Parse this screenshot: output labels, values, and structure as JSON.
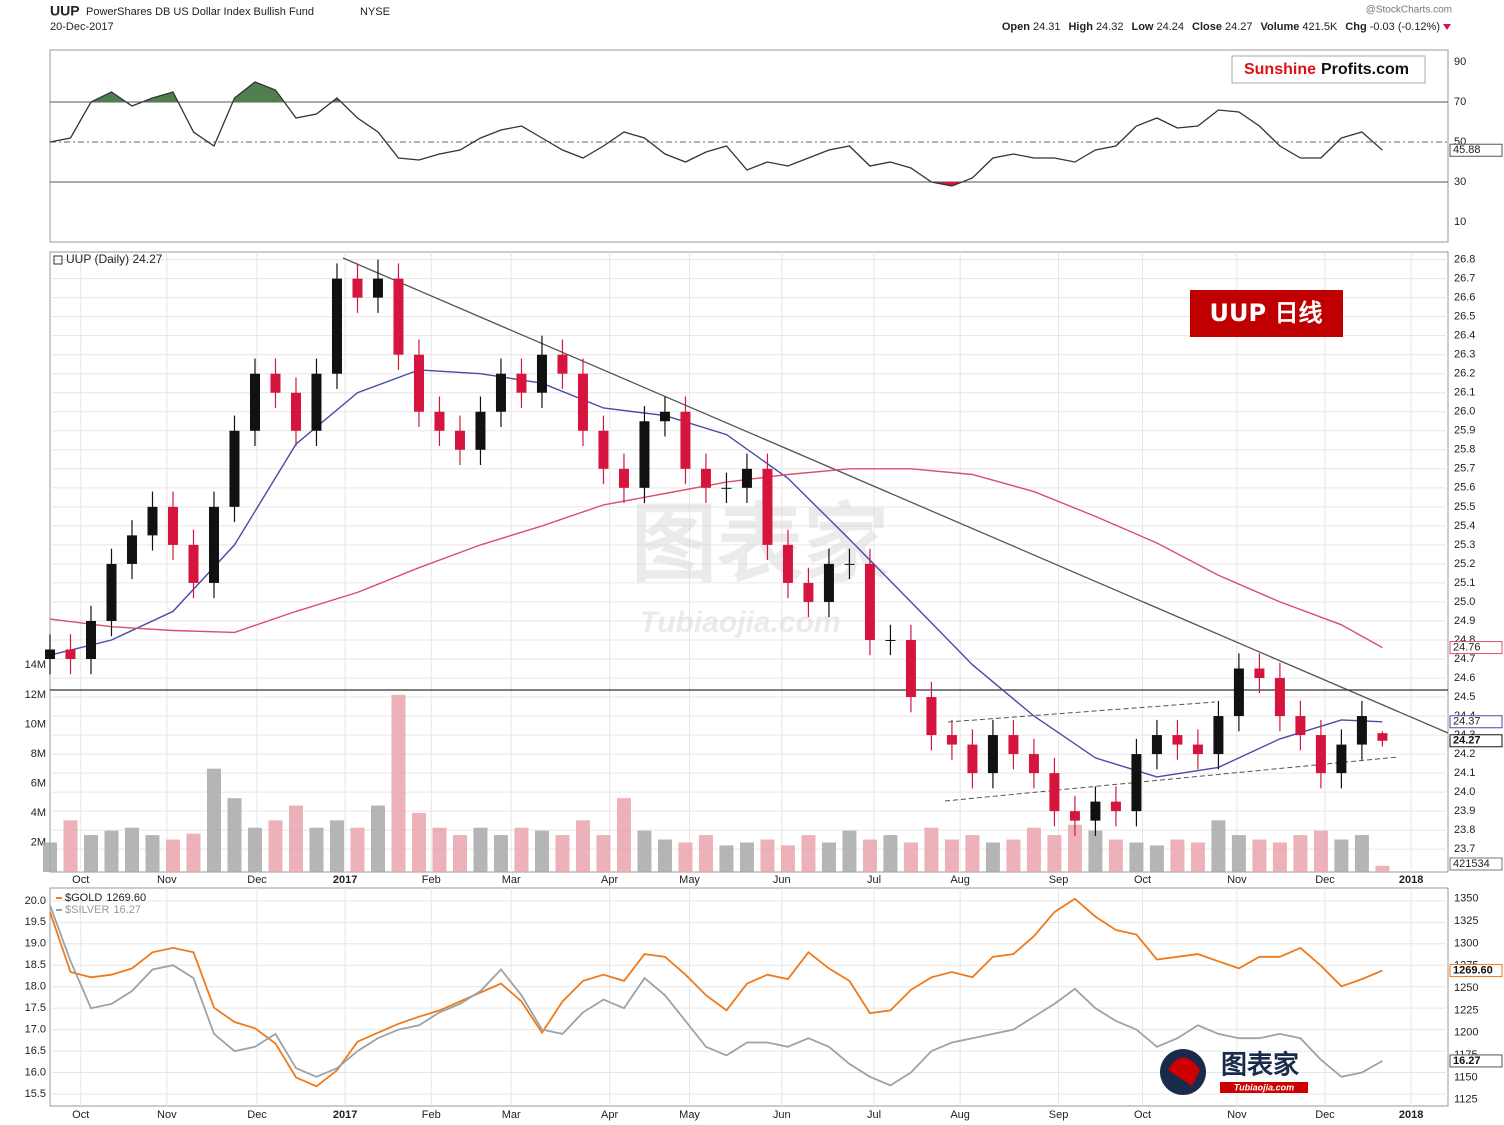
{
  "header": {
    "symbol": "UUP",
    "name": "PowerShares DB US Dollar Index Bullish Fund",
    "exchange": "NYSE",
    "source": "@StockCharts.com",
    "date": "20-Dec-2017",
    "stats": [
      {
        "label": "Open",
        "value": "24.31"
      },
      {
        "label": "High",
        "value": "24.32"
      },
      {
        "label": "Low",
        "value": "24.24"
      },
      {
        "label": "Close",
        "value": "24.27"
      },
      {
        "label": "Volume",
        "value": "421.5K"
      },
      {
        "label": "Chg",
        "value": "-0.03 (-0.12%)"
      }
    ],
    "brand": {
      "red": "Sunshine",
      "black": "Profits.com"
    },
    "badge": "UUP  日线",
    "watermark": {
      "text": "图表家",
      "subtext": "Tubiaojia.com"
    },
    "logo": {
      "text": "图表家",
      "subtext": "Tubiaojia.com"
    }
  },
  "chart_data": [
    {
      "type": "line",
      "xlim": [
        0,
        68.2
      ],
      "ylim": [
        0,
        96
      ],
      "yticks": [
        10,
        30,
        50,
        70,
        90
      ],
      "overbought_color": "#4f7f4f",
      "oversold_color": "#d6153f",
      "x": [
        0,
        1,
        2,
        3,
        4,
        5,
        6,
        7,
        8,
        9,
        10,
        11,
        12,
        13,
        14,
        15,
        16,
        17,
        18,
        19,
        20,
        21,
        22,
        23,
        24,
        25,
        26,
        27,
        28,
        29,
        30,
        31,
        32,
        33,
        34,
        35,
        36,
        37,
        38,
        39,
        40,
        41,
        42,
        43,
        44,
        45,
        46,
        47,
        48,
        49,
        50,
        51,
        52,
        53,
        54,
        55,
        56,
        57,
        58,
        59,
        60,
        61,
        62,
        63,
        64,
        65
      ],
      "series": [
        {
          "color": "#333333",
          "values": [
            50,
            52,
            70,
            75,
            68,
            72,
            75,
            55,
            48,
            72,
            80,
            76,
            62,
            64,
            72,
            62,
            55,
            42,
            41,
            44,
            46,
            52,
            56,
            58,
            52,
            46,
            42,
            48,
            55,
            52,
            44,
            40,
            45,
            48,
            36,
            40,
            38,
            42,
            46,
            48,
            38,
            40,
            37,
            30,
            28,
            32,
            42,
            44,
            42,
            42,
            40,
            46,
            48,
            58,
            62,
            57,
            58,
            66,
            65,
            58,
            48,
            42,
            42,
            52,
            55,
            45.88
          ]
        }
      ]
    },
    {
      "type": "candlestick",
      "title": "UUP (Daily) 24.27",
      "xlim": [
        0,
        68.2
      ],
      "ylim": [
        23.58,
        26.84
      ],
      "grid": true,
      "up_color": "#111111",
      "down_color": "#d6153f",
      "yticks": [
        23.7,
        23.8,
        23.9,
        {
          "value": 24,
          "label": "24.0"
        },
        24.1,
        24.2,
        24.3,
        24.4,
        24.5,
        24.6,
        24.7,
        24.8,
        24.9,
        {
          "value": 25,
          "label": "25.0"
        },
        25.1,
        25.2,
        25.3,
        25.4,
        25.5,
        25.6,
        25.7,
        25.8,
        25.9,
        {
          "value": 26,
          "label": "26.0"
        },
        26.1,
        26.2,
        26.3,
        26.4,
        26.5,
        26.6,
        26.7,
        26.8
      ],
      "xticks": [
        {
          "value": 1.5,
          "label": "Oct"
        },
        {
          "value": 5.7,
          "label": "Nov"
        },
        {
          "value": 10.1,
          "label": "Dec"
        },
        {
          "value": 14.4,
          "label": "2017"
        },
        {
          "value": 18.6,
          "label": "Feb"
        },
        {
          "value": 22.5,
          "label": "Mar"
        },
        {
          "value": 27.3,
          "label": "Apr"
        },
        {
          "value": 31.2,
          "label": "May"
        },
        {
          "value": 35.7,
          "label": "Jun"
        },
        {
          "value": 40.2,
          "label": "Jul"
        },
        {
          "value": 44.4,
          "label": "Aug"
        },
        {
          "value": 49.2,
          "label": "Sep"
        },
        {
          "value": 53.3,
          "label": "Oct"
        },
        {
          "value": 57.9,
          "label": "Nov"
        },
        {
          "value": 62.2,
          "label": "Dec"
        },
        {
          "value": 66.4,
          "label": "2018"
        }
      ],
      "x": [
        0,
        1,
        2,
        3,
        4,
        5,
        6,
        7,
        8,
        9,
        10,
        11,
        12,
        13,
        14,
        15,
        16,
        17,
        18,
        19,
        20,
        21,
        22,
        23,
        24,
        25,
        26,
        27,
        28,
        29,
        30,
        31,
        32,
        33,
        34,
        35,
        36,
        37,
        38,
        39,
        40,
        41,
        42,
        43,
        44,
        45,
        46,
        47,
        48,
        49,
        50,
        51,
        52,
        53,
        54,
        55,
        56,
        57,
        58,
        59,
        60,
        61,
        62,
        63,
        64,
        65
      ],
      "open": [
        24.7,
        24.75,
        24.7,
        24.9,
        25.2,
        25.35,
        25.5,
        25.3,
        25.1,
        25.5,
        25.9,
        26.2,
        26.1,
        25.9,
        26.2,
        26.7,
        26.6,
        26.7,
        26.3,
        26.0,
        25.9,
        25.8,
        26.0,
        26.2,
        26.1,
        26.3,
        26.2,
        25.9,
        25.7,
        25.6,
        25.95,
        26.0,
        25.7,
        25.6,
        25.6,
        25.7,
        25.3,
        25.1,
        25.0,
        25.2,
        25.2,
        24.8,
        24.8,
        24.5,
        24.3,
        24.25,
        24.1,
        24.3,
        24.2,
        24.1,
        23.9,
        23.85,
        23.95,
        23.9,
        24.2,
        24.3,
        24.25,
        24.2,
        24.4,
        24.65,
        24.6,
        24.4,
        24.3,
        24.1,
        24.25,
        24.31
      ],
      "high": [
        24.83,
        24.83,
        24.98,
        25.28,
        25.43,
        25.58,
        25.58,
        25.38,
        25.58,
        25.98,
        26.28,
        26.28,
        26.18,
        26.28,
        26.78,
        26.78,
        26.8,
        26.78,
        26.38,
        26.08,
        25.98,
        26.08,
        26.28,
        26.28,
        26.4,
        26.38,
        26.28,
        25.98,
        25.78,
        26.03,
        26.08,
        26.08,
        25.78,
        25.68,
        25.78,
        25.78,
        25.38,
        25.18,
        25.28,
        25.28,
        25.28,
        24.88,
        24.88,
        24.58,
        24.38,
        24.33,
        24.38,
        24.38,
        24.28,
        24.18,
        23.98,
        24.03,
        24.03,
        24.28,
        24.38,
        24.38,
        24.33,
        24.48,
        24.73,
        24.73,
        24.68,
        24.48,
        24.38,
        24.33,
        24.48,
        24.32
      ],
      "low": [
        24.62,
        24.62,
        24.62,
        24.82,
        25.12,
        25.27,
        25.22,
        25.02,
        25.02,
        25.42,
        25.82,
        26.02,
        25.82,
        25.82,
        26.12,
        26.52,
        26.52,
        26.22,
        25.92,
        25.82,
        25.72,
        25.72,
        25.92,
        26.02,
        26.02,
        26.12,
        25.82,
        25.62,
        25.52,
        25.52,
        25.87,
        25.62,
        25.52,
        25.52,
        25.52,
        25.22,
        25.02,
        24.92,
        24.92,
        25.12,
        24.72,
        24.72,
        24.42,
        24.22,
        24.17,
        24.02,
        24.02,
        24.12,
        24.02,
        23.82,
        23.77,
        23.77,
        23.82,
        23.82,
        24.12,
        24.17,
        24.12,
        24.12,
        24.32,
        24.52,
        24.32,
        24.22,
        24.02,
        24.02,
        24.17,
        24.24
      ],
      "close": [
        24.75,
        24.7,
        24.9,
        25.2,
        25.35,
        25.5,
        25.3,
        25.1,
        25.5,
        25.9,
        26.2,
        26.1,
        25.9,
        26.2,
        26.7,
        26.6,
        26.7,
        26.3,
        26.0,
        25.9,
        25.8,
        26.0,
        26.2,
        26.1,
        26.3,
        26.2,
        25.9,
        25.7,
        25.6,
        25.95,
        26.0,
        25.7,
        25.6,
        25.6,
        25.7,
        25.3,
        25.1,
        25.0,
        25.2,
        25.2,
        24.8,
        24.8,
        24.5,
        24.3,
        24.25,
        24.1,
        24.3,
        24.2,
        24.1,
        23.9,
        23.85,
        23.95,
        23.9,
        24.2,
        24.3,
        24.25,
        24.2,
        24.4,
        24.65,
        24.6,
        24.4,
        24.3,
        24.1,
        24.25,
        24.4,
        24.27
      ],
      "moving_averages": [
        {
          "color": "#4a4aa8",
          "x": [
            0,
            3,
            6,
            9,
            12,
            15,
            18,
            21,
            24,
            27,
            30,
            33,
            36,
            39,
            42,
            45,
            48,
            51,
            54,
            57,
            60,
            63,
            65
          ],
          "values": [
            24.72,
            24.8,
            24.95,
            25.3,
            25.83,
            26.1,
            26.22,
            26.2,
            26.15,
            26.02,
            25.98,
            25.88,
            25.65,
            25.33,
            25.0,
            24.67,
            24.4,
            24.18,
            24.08,
            24.13,
            24.28,
            24.38,
            24.37
          ]
        },
        {
          "color": "#d9506a",
          "x": [
            0,
            3,
            6,
            9,
            12,
            15,
            18,
            21,
            24,
            27,
            30,
            33,
            36,
            39,
            42,
            45,
            48,
            51,
            54,
            57,
            60,
            63,
            65
          ],
          "values": [
            24.91,
            24.87,
            24.85,
            24.84,
            24.95,
            25.05,
            25.18,
            25.3,
            25.4,
            25.51,
            25.57,
            25.63,
            25.67,
            25.7,
            25.7,
            25.67,
            25.58,
            25.45,
            25.31,
            25.14,
            25.0,
            24.88,
            24.76
          ]
        }
      ],
      "volume": {
        "up_color": "#a8a8a8",
        "down_color": "#e9a3ad",
        "y2lim": [
          0,
          42
        ],
        "y2ticks": [
          {
            "value": 2,
            "label": "2M"
          },
          {
            "value": 4,
            "label": "4M"
          },
          {
            "value": 6,
            "label": "6M"
          },
          {
            "value": 8,
            "label": "8M"
          },
          {
            "value": 10,
            "label": "10M"
          },
          {
            "value": 12,
            "label": "12M"
          },
          {
            "value": 14,
            "label": "14M"
          }
        ],
        "values": [
          2.0,
          3.5,
          2.5,
          2.8,
          3.0,
          2.5,
          2.2,
          2.6,
          7.0,
          5.0,
          3.0,
          3.5,
          4.5,
          3.0,
          3.5,
          3.0,
          4.5,
          12.0,
          4.0,
          3.0,
          2.5,
          3.0,
          2.5,
          3.0,
          2.8,
          2.5,
          3.5,
          2.5,
          5.0,
          2.8,
          2.2,
          2.0,
          2.5,
          1.8,
          2.0,
          2.2,
          1.8,
          2.5,
          2.0,
          2.8,
          2.2,
          2.5,
          2.0,
          3.0,
          2.2,
          2.5,
          2.0,
          2.2,
          3.0,
          2.5,
          3.2,
          2.8,
          2.2,
          2.0,
          1.8,
          2.2,
          2.0,
          3.5,
          2.5,
          2.2,
          2.0,
          2.5,
          2.8,
          2.2,
          2.5,
          0.421534
        ],
        "last_label": "421534"
      }
    },
    {
      "type": "line",
      "xlim": [
        0,
        68.2
      ],
      "ylim": [
        15.22,
        20.3
      ],
      "y2lim": [
        1118,
        1362
      ],
      "yticks": [
        15.5,
        {
          "value": 16,
          "label": "16.0"
        },
        16.5,
        {
          "value": 17,
          "label": "17.0"
        },
        17.5,
        {
          "value": 18,
          "label": "18.0"
        },
        18.5,
        {
          "value": 19,
          "label": "19.0"
        },
        19.5,
        {
          "value": 20,
          "label": "20.0"
        }
      ],
      "y2ticks": [
        1125,
        1150,
        1175,
        1200,
        1225,
        1250,
        1275,
        1300,
        1325,
        1350
      ],
      "xticks": [
        {
          "value": 1.5,
          "label": "Oct"
        },
        {
          "value": 5.7,
          "label": "Nov"
        },
        {
          "value": 10.1,
          "label": "Dec"
        },
        {
          "value": 14.4,
          "label": "2017"
        },
        {
          "value": 18.6,
          "label": "Feb"
        },
        {
          "value": 22.5,
          "label": "Mar"
        },
        {
          "value": 27.3,
          "label": "Apr"
        },
        {
          "value": 31.2,
          "label": "May"
        },
        {
          "value": 35.7,
          "label": "Jun"
        },
        {
          "value": 40.2,
          "label": "Jul"
        },
        {
          "value": 44.4,
          "label": "Aug"
        },
        {
          "value": 49.2,
          "label": "Sep"
        },
        {
          "value": 53.3,
          "label": "Oct"
        },
        {
          "value": 57.9,
          "label": "Nov"
        },
        {
          "value": 62.2,
          "label": "Dec"
        },
        {
          "value": 66.4,
          "label": "2018"
        }
      ],
      "x": [
        0,
        1,
        2,
        3,
        4,
        5,
        6,
        7,
        8,
        9,
        10,
        11,
        12,
        13,
        14,
        15,
        16,
        17,
        18,
        19,
        20,
        21,
        22,
        23,
        24,
        25,
        26,
        27,
        28,
        29,
        30,
        31,
        32,
        33,
        34,
        35,
        36,
        37,
        38,
        39,
        40,
        41,
        42,
        43,
        44,
        45,
        46,
        47,
        48,
        49,
        50,
        51,
        52,
        53,
        54,
        55,
        56,
        57,
        58,
        59,
        60,
        61,
        62,
        63,
        64,
        65
      ],
      "series": [
        {
          "name": "$GOLD",
          "color": "#f07a1a",
          "axis": "y2",
          "last_label": "1269.60",
          "values": [
            1335,
            1268,
            1262,
            1265,
            1272,
            1290,
            1295,
            1290,
            1228,
            1212,
            1205,
            1188,
            1150,
            1140,
            1158,
            1190,
            1200,
            1210,
            1218,
            1225,
            1235,
            1245,
            1255,
            1235,
            1200,
            1235,
            1258,
            1265,
            1258,
            1288,
            1285,
            1265,
            1242,
            1225,
            1255,
            1265,
            1260,
            1290,
            1272,
            1258,
            1222,
            1225,
            1248,
            1262,
            1268,
            1262,
            1285,
            1288,
            1308,
            1335,
            1350,
            1330,
            1315,
            1310,
            1282,
            1285,
            1288,
            1280,
            1272,
            1285,
            1285,
            1295,
            1275,
            1252,
            1260,
            1269.6
          ]
        },
        {
          "name": "$SILVER",
          "color": "#9aa3a8",
          "values": [
            19.9,
            18.6,
            17.5,
            17.6,
            17.9,
            18.4,
            18.5,
            18.2,
            16.9,
            16.5,
            16.6,
            16.9,
            16.1,
            15.9,
            16.1,
            16.5,
            16.8,
            17.0,
            17.1,
            17.4,
            17.6,
            17.9,
            18.4,
            17.8,
            17.0,
            16.9,
            17.4,
            17.7,
            17.5,
            18.2,
            17.8,
            17.2,
            16.6,
            16.4,
            16.7,
            16.7,
            16.6,
            16.8,
            16.6,
            16.2,
            15.9,
            15.7,
            16.0,
            16.5,
            16.7,
            16.8,
            16.9,
            17.0,
            17.3,
            17.6,
            17.95,
            17.5,
            17.2,
            17.0,
            16.6,
            16.8,
            17.1,
            16.9,
            16.8,
            16.8,
            16.9,
            16.8,
            16.3,
            15.9,
            16.0,
            16.27
          ]
        }
      ]
    }
  ]
}
